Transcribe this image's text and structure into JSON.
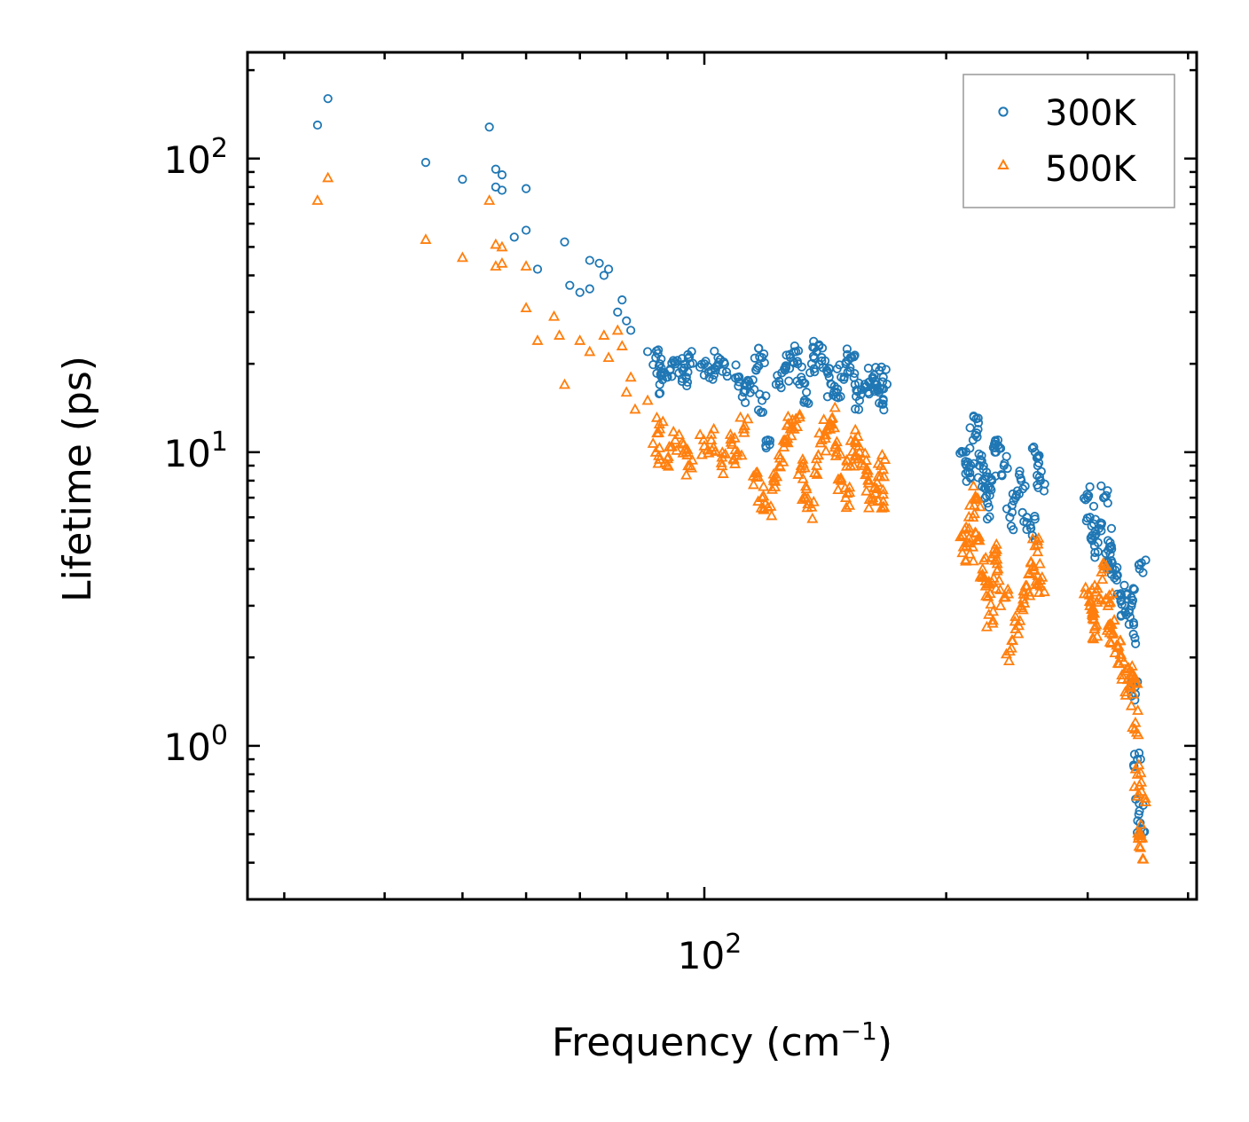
{
  "chart_data": {
    "type": "scatter",
    "title": "",
    "xlabel": "Frequency (cm",
    "xlabel_sup": "−1",
    "xlabel_suffix": ")",
    "ylabel": "Lifetime (ps)",
    "xscale": "log",
    "yscale": "log",
    "xlim": [
      27,
      410
    ],
    "ylim": [
      0.3,
      230
    ],
    "x_ticks": [
      {
        "base": "10",
        "exp": "2"
      }
    ],
    "y_ticks": [
      {
        "base": "10",
        "exp": "0"
      },
      {
        "base": "10",
        "exp": "1"
      },
      {
        "base": "10",
        "exp": "2"
      }
    ],
    "legend_position": "top-right",
    "colors": {
      "s300": "#1f77b4",
      "s500": "#ff7f0e"
    },
    "series": [
      {
        "name": "300K",
        "marker": "circle",
        "x": [
          33,
          34,
          45,
          50,
          54,
          55,
          55,
          56,
          56,
          60,
          60,
          67,
          72,
          62,
          58,
          68,
          75,
          74,
          76,
          70,
          72,
          78,
          79,
          80,
          81,
          85,
          88,
          87,
          92,
          90,
          88,
          94,
          96,
          95,
          100,
          102,
          104,
          106,
          110,
          112,
          114,
          116,
          118,
          118,
          120,
          124,
          126,
          128,
          130,
          132,
          134,
          136,
          138,
          140,
          142,
          144,
          146,
          148,
          150,
          152,
          154,
          156,
          160,
          162,
          164,
          165,
          167,
          167,
          210,
          212,
          214,
          216,
          218,
          220,
          222,
          224,
          226,
          228,
          230,
          232,
          236,
          240,
          244,
          248,
          252,
          255,
          258,
          260,
          262,
          300,
          302,
          304,
          306,
          310,
          314,
          318,
          320,
          322,
          326,
          330,
          334,
          338,
          340,
          342,
          344,
          346,
          348,
          349,
          350
        ],
        "y": [
          130,
          160,
          97,
          85,
          128,
          92,
          80,
          88,
          78,
          79,
          57,
          52,
          45,
          42,
          54,
          37,
          40,
          44,
          42,
          35,
          36,
          30,
          33,
          28,
          26,
          22,
          20,
          21,
          20,
          18,
          17,
          19,
          20,
          18,
          20,
          19,
          21,
          20,
          18,
          16,
          17,
          19,
          21,
          15,
          11,
          17,
          19,
          21,
          22,
          18,
          16,
          20,
          22,
          21,
          19,
          17,
          16,
          18,
          20,
          21,
          17,
          15,
          16,
          18,
          17,
          16,
          18,
          15,
          10,
          9,
          8.5,
          11,
          13,
          9,
          8,
          7.5,
          6.5,
          8,
          10,
          11,
          9,
          6,
          7,
          8,
          6,
          5.5,
          10,
          9,
          8,
          7,
          6,
          5,
          4.8,
          5.5,
          7,
          5,
          4.5,
          4,
          3.8,
          3.3,
          3,
          2.9,
          3.2,
          2.4,
          1.5,
          0.9,
          0.6,
          0.5,
          4.2
        ]
      },
      {
        "name": "500K",
        "marker": "triangle",
        "x": [
          33,
          34,
          45,
          50,
          54,
          55,
          55,
          56,
          56,
          60,
          60,
          62,
          65,
          66,
          70,
          67,
          72,
          75,
          76,
          78,
          79,
          80,
          81,
          82,
          85,
          88,
          87,
          90,
          92,
          95,
          96,
          100,
          102,
          105,
          108,
          110,
          112,
          116,
          118,
          120,
          122,
          124,
          126,
          128,
          130,
          132,
          134,
          136,
          138,
          140,
          142,
          144,
          146,
          148,
          150,
          152,
          154,
          156,
          158,
          160,
          162,
          164,
          166,
          167,
          210,
          212,
          214,
          216,
          218,
          220,
          222,
          224,
          226,
          228,
          230,
          232,
          236,
          240,
          244,
          248,
          252,
          255,
          258,
          260,
          262,
          300,
          302,
          304,
          306,
          310,
          314,
          318,
          320,
          322,
          326,
          330,
          334,
          338,
          340,
          342,
          344,
          346,
          348,
          349,
          350
        ],
        "y": [
          72,
          86,
          53,
          46,
          72,
          51,
          43,
          50,
          44,
          43,
          31,
          24,
          29,
          25,
          24,
          17,
          22,
          25,
          21,
          26,
          23,
          16,
          18,
          14,
          15,
          12,
          10,
          9.5,
          11,
          10,
          9,
          10.5,
          11,
          9.2,
          10.8,
          10,
          12,
          8.5,
          7,
          6.5,
          8,
          9,
          11,
          12,
          13,
          9,
          7.5,
          6.5,
          9,
          11,
          12,
          13,
          10,
          8,
          7,
          9,
          11,
          10,
          9,
          8,
          7,
          7.5,
          9,
          6.8,
          5.2,
          4.8,
          4.5,
          6,
          7,
          5,
          4,
          3.5,
          2.8,
          3.6,
          4.5,
          4,
          3.2,
          2.1,
          2.5,
          3,
          3.5,
          4.2,
          4.8,
          3.8,
          3.5,
          3.3,
          3,
          2.8,
          2.5,
          3.2,
          4,
          3,
          2.6,
          2.4,
          2.2,
          2,
          1.8,
          1.6,
          1.7,
          1.5,
          1.2,
          0.8,
          0.5,
          0.45,
          0.7
        ]
      }
    ]
  }
}
